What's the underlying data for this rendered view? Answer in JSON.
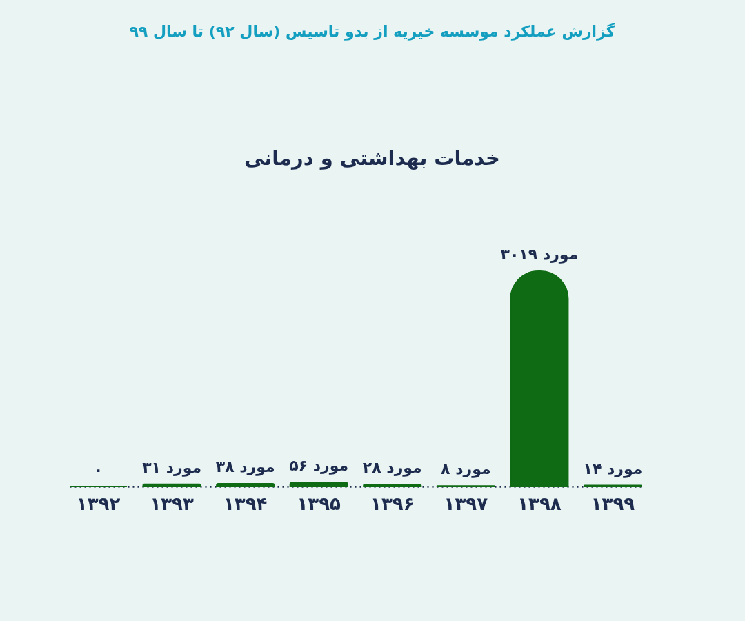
{
  "chart_data": {
    "type": "bar",
    "title": "گزارش عملکرد موسسه خیریه از بدو تاسیس (سال ۹۲) تا سال ۹۹",
    "subtitle": "خدمات بهداشتی و درمانی",
    "categories": [
      "۱۳۹۲",
      "۱۳۹۳",
      "۱۳۹۴",
      "۱۳۹۵",
      "۱۳۹۶",
      "۱۳۹۷",
      "۱۳۹۸",
      "۱۳۹۹"
    ],
    "values": [
      0,
      31,
      38,
      56,
      28,
      8,
      3019,
      14
    ],
    "color": "#0f6b14",
    "value_labels": [
      "۰",
      "۳۱ مورد",
      "۳۸ مورد",
      "۵۶ مورد",
      "۲۸ مورد",
      "۸ مورد",
      "۳۰۱۹ مورد",
      "۱۴ مورد"
    ]
  }
}
